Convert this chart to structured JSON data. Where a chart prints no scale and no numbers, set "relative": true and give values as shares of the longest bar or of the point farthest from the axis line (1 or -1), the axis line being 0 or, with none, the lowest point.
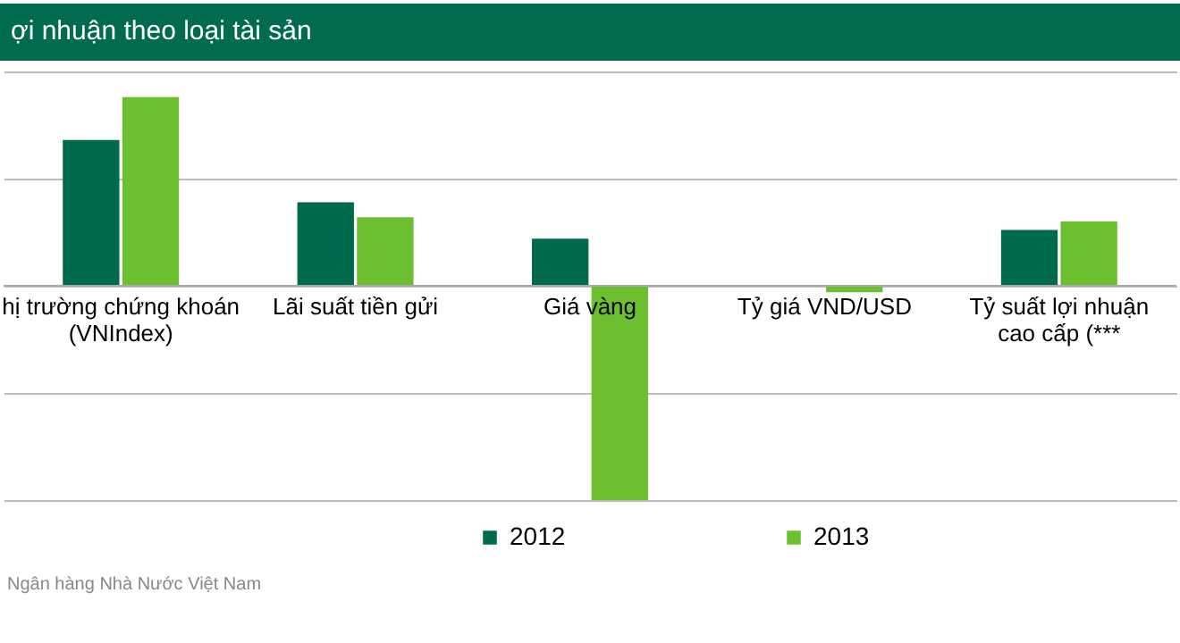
{
  "chart_data": {
    "type": "bar",
    "title": "ợi nhuận theo loại tài sản",
    "relative": true,
    "grid": "y",
    "legend": "bottom",
    "categories": [
      "hị trường chứng khoán\n(VNIndex)",
      "Lãi suất tiền gửi",
      "Giá vàng",
      "Tỷ giá VND/USD",
      "Tỷ suất lợi nhuận\ncao cấp (***"
    ],
    "series": [
      {
        "name": "2012",
        "color": "#006a4e",
        "values": [
          0.68,
          0.39,
          0.22,
          0,
          0.26
        ]
      },
      {
        "name": "2013",
        "color": "#6cbf2f",
        "values": [
          0.88,
          0.32,
          -1,
          -0.03,
          0.3
        ]
      }
    ],
    "annotations": [
      "Ngân hàng Nhà Nước Việt Nam"
    ]
  }
}
